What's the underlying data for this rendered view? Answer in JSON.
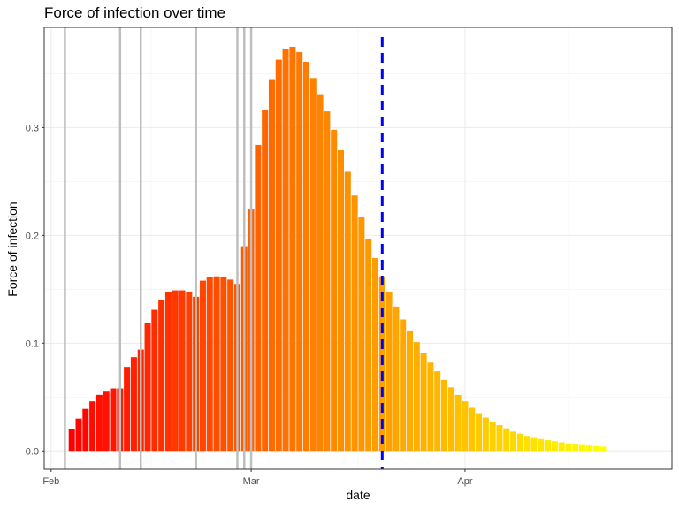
{
  "chart_data": {
    "type": "bar",
    "title": "Force of infection over time",
    "xlabel": "date",
    "ylabel": "Force of infection",
    "x_tick_labels": [
      "Feb",
      "Mar",
      "Apr"
    ],
    "x_tick_dates": [
      "2020-02-01",
      "2020-03-01",
      "2020-04-01"
    ],
    "y_ticks": [
      0.0,
      0.1,
      0.2,
      0.3
    ],
    "y_tick_labels": [
      "0.0",
      "0.1",
      "0.2",
      "0.3"
    ],
    "xlim": [
      "2020-01-31",
      "2020-05-01"
    ],
    "ylim": [
      -0.017,
      0.393
    ],
    "grid": true,
    "legend": "none",
    "bar_color_gradient": [
      "#ff0000",
      "#ff8c00",
      "#ffff00"
    ],
    "dates": [
      "2020-02-04",
      "2020-02-05",
      "2020-02-06",
      "2020-02-07",
      "2020-02-08",
      "2020-02-09",
      "2020-02-10",
      "2020-02-11",
      "2020-02-12",
      "2020-02-13",
      "2020-02-14",
      "2020-02-15",
      "2020-02-16",
      "2020-02-17",
      "2020-02-18",
      "2020-02-19",
      "2020-02-20",
      "2020-02-21",
      "2020-02-22",
      "2020-02-23",
      "2020-02-24",
      "2020-02-25",
      "2020-02-26",
      "2020-02-27",
      "2020-02-28",
      "2020-02-29",
      "2020-03-01",
      "2020-03-02",
      "2020-03-03",
      "2020-03-04",
      "2020-03-05",
      "2020-03-06",
      "2020-03-07",
      "2020-03-08",
      "2020-03-09",
      "2020-03-10",
      "2020-03-11",
      "2020-03-12",
      "2020-03-13",
      "2020-03-14",
      "2020-03-15",
      "2020-03-16",
      "2020-03-17",
      "2020-03-18",
      "2020-03-19",
      "2020-03-20",
      "2020-03-21",
      "2020-03-22",
      "2020-03-23",
      "2020-03-24",
      "2020-03-25",
      "2020-03-26",
      "2020-03-27",
      "2020-03-28",
      "2020-03-29",
      "2020-03-30",
      "2020-03-31",
      "2020-04-01",
      "2020-04-02",
      "2020-04-03",
      "2020-04-04",
      "2020-04-05",
      "2020-04-06",
      "2020-04-07",
      "2020-04-08",
      "2020-04-09",
      "2020-04-10",
      "2020-04-11",
      "2020-04-12",
      "2020-04-13",
      "2020-04-14",
      "2020-04-15",
      "2020-04-16",
      "2020-04-17",
      "2020-04-18",
      "2020-04-19",
      "2020-04-20",
      "2020-04-21"
    ],
    "values": [
      0.02,
      0.03,
      0.039,
      0.046,
      0.052,
      0.055,
      0.058,
      0.058,
      0.078,
      0.087,
      0.094,
      0.119,
      0.131,
      0.14,
      0.147,
      0.149,
      0.149,
      0.147,
      0.143,
      0.158,
      0.161,
      0.162,
      0.161,
      0.159,
      0.155,
      0.19,
      0.224,
      0.284,
      0.316,
      0.345,
      0.363,
      0.373,
      0.375,
      0.37,
      0.361,
      0.346,
      0.331,
      0.315,
      0.298,
      0.279,
      0.259,
      0.237,
      0.217,
      0.197,
      0.179,
      0.162,
      0.147,
      0.134,
      0.122,
      0.111,
      0.101,
      0.091,
      0.082,
      0.074,
      0.066,
      0.059,
      0.052,
      0.046,
      0.04,
      0.035,
      0.031,
      0.027,
      0.024,
      0.021,
      0.018,
      0.016,
      0.014,
      0.012,
      0.011,
      0.01,
      0.009,
      0.008,
      0.007,
      0.006,
      0.0055,
      0.005,
      0.0045,
      0.004
    ],
    "grey_vlines": [
      "2020-02-03",
      "2020-02-11",
      "2020-02-14",
      "2020-02-22",
      "2020-02-28",
      "2020-02-29",
      "2020-03-01"
    ],
    "blue_dashed_vline": "2020-03-20",
    "grey_line_color": "#bebebe",
    "blue_line_color": "#0000ff"
  }
}
